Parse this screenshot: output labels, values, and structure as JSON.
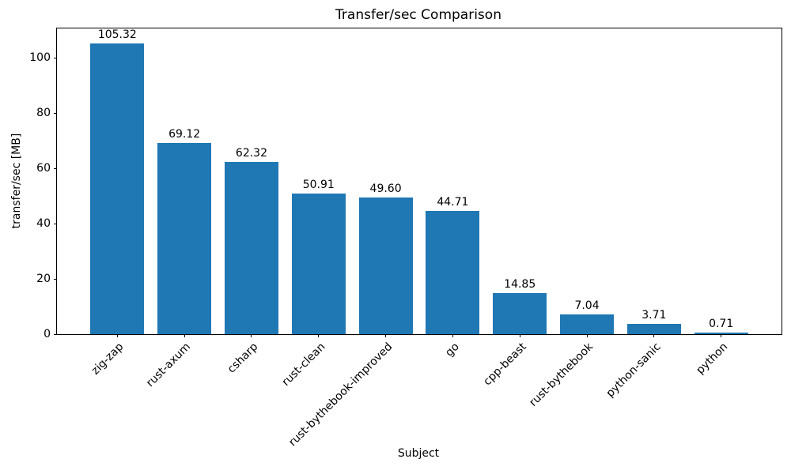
{
  "chart_data": {
    "type": "bar",
    "title": "Transfer/sec Comparison",
    "xlabel": "Subject",
    "ylabel": "transfer/sec [MB]",
    "categories": [
      "zig-zap",
      "rust-axum",
      "csharp",
      "rust-clean",
      "rust-bythebook-improved",
      "go",
      "cpp-beast",
      "rust-bythebook",
      "python-sanic",
      "python"
    ],
    "values": [
      105.32,
      69.12,
      62.32,
      50.91,
      49.6,
      44.71,
      14.85,
      7.04,
      3.71,
      0.71
    ],
    "value_labels": [
      "105.32",
      "69.12",
      "62.32",
      "50.91",
      "49.60",
      "44.71",
      "14.85",
      "7.04",
      "3.71",
      "0.71"
    ],
    "yticks": [
      0,
      20,
      40,
      60,
      80,
      100
    ],
    "ylim": [
      0,
      110.7
    ],
    "bar_color": "#1f77b4",
    "text_color": "#000000",
    "grid": false,
    "legend_position": "none",
    "xtick_rotation_deg": 45
  }
}
